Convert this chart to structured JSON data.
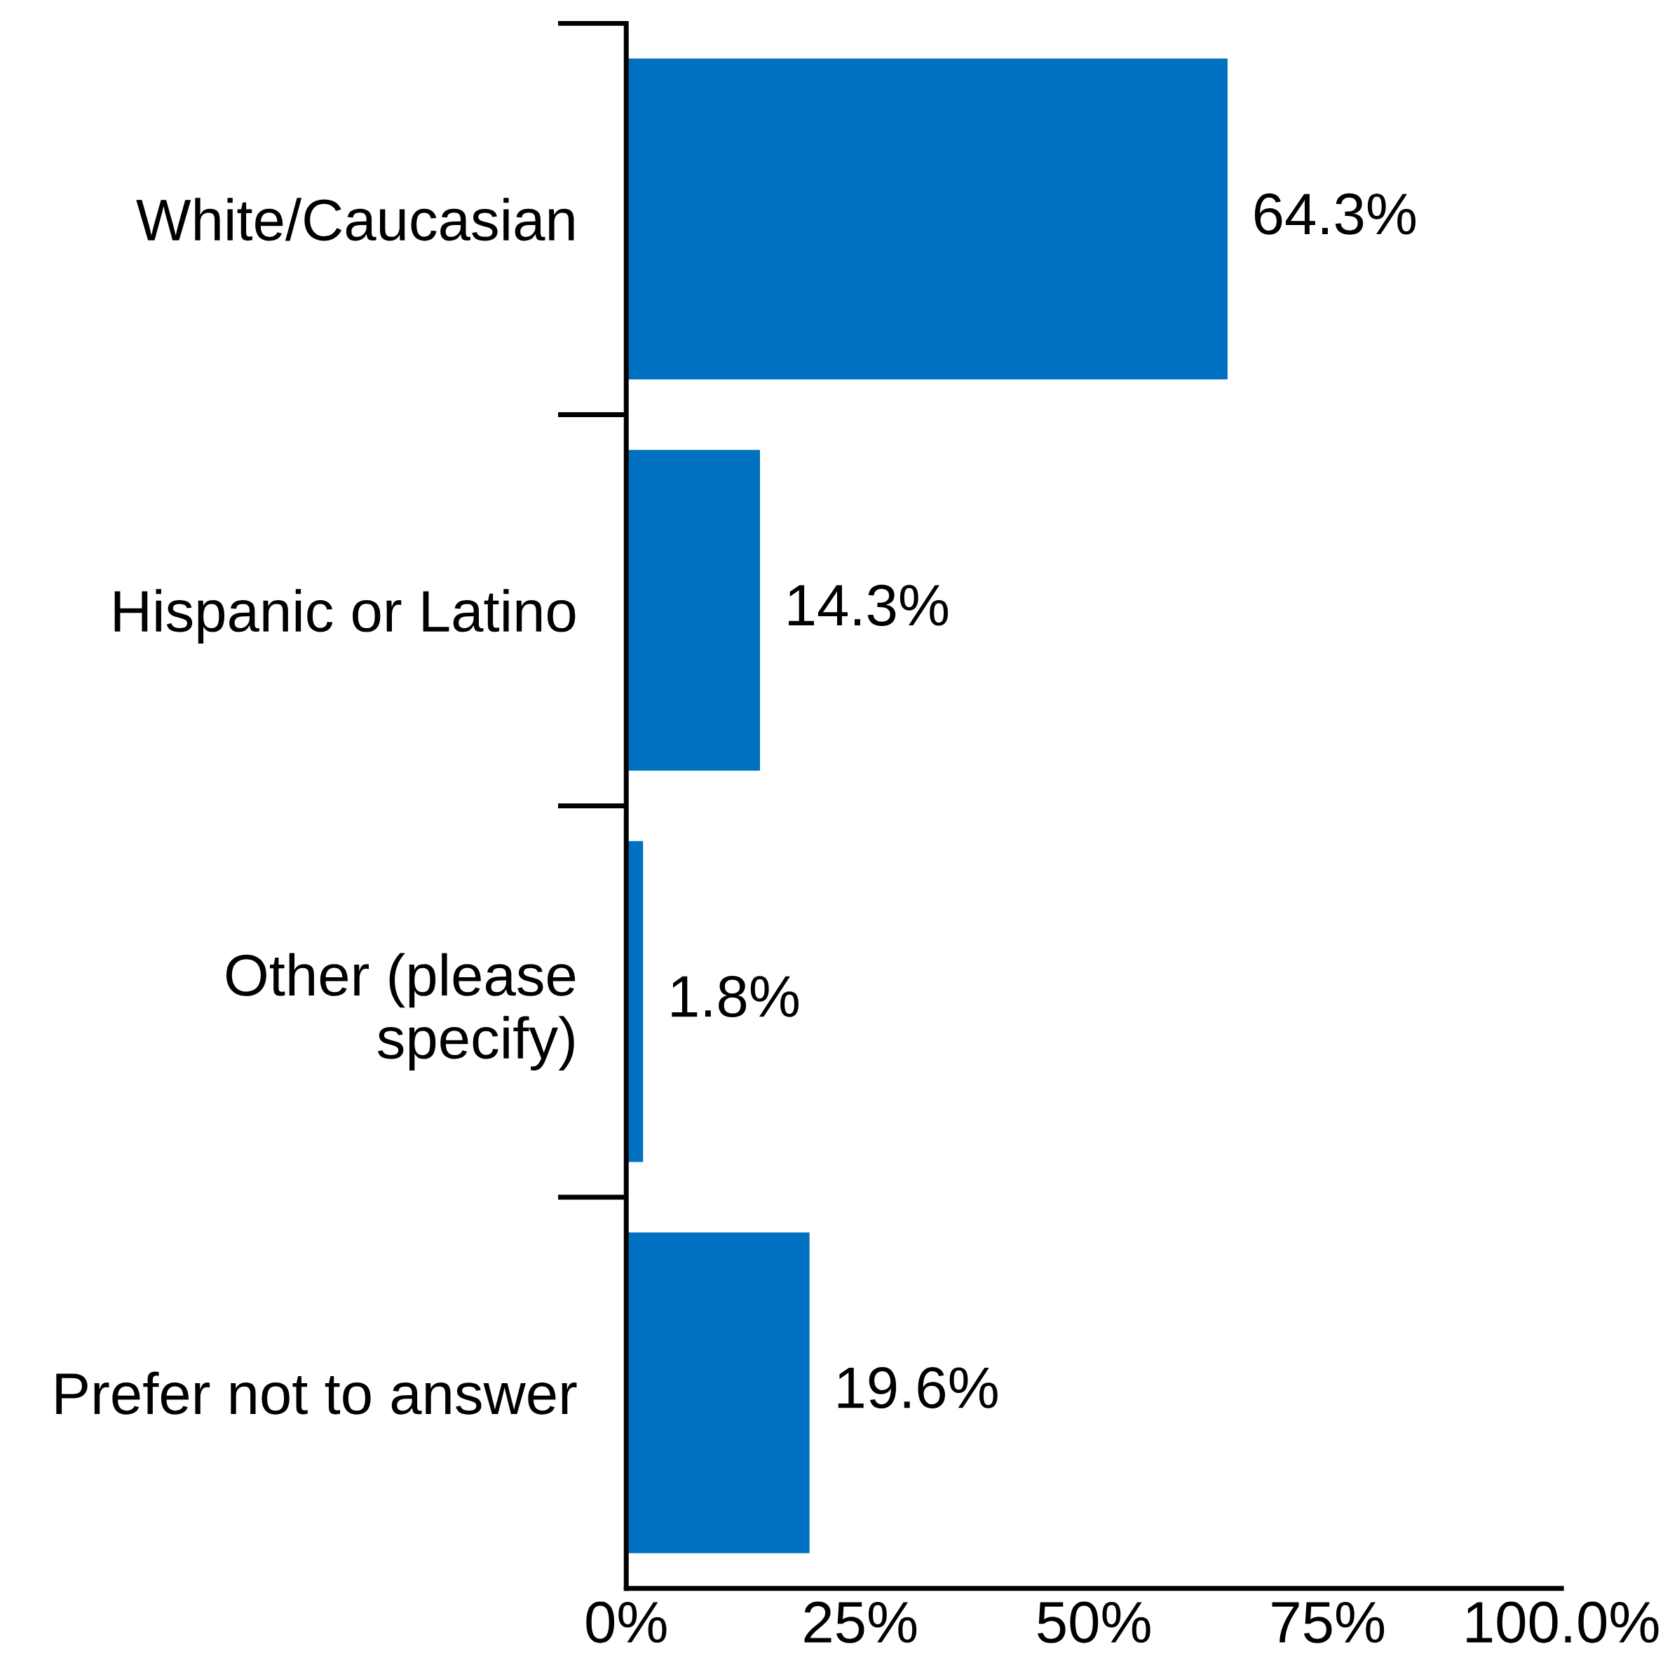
{
  "chart_data": {
    "type": "bar",
    "orientation": "horizontal",
    "categories": [
      "White/Caucasian",
      "Hispanic or Latino",
      "Other (please\nspecify)",
      "Prefer not to answer"
    ],
    "values": [
      64.3,
      14.3,
      1.8,
      19.6
    ],
    "value_labels": [
      "64.3%",
      "14.3%",
      "1.8%",
      "19.6%"
    ],
    "color": "#0070c0",
    "xlim": [
      0,
      100
    ],
    "xticks": [
      {
        "value": 0,
        "label": "0%"
      },
      {
        "value": 25,
        "label": "25%"
      },
      {
        "value": 50,
        "label": "50%"
      },
      {
        "value": 75,
        "label": "75%"
      },
      {
        "value": 100,
        "label": "100.0%"
      }
    ],
    "grid": false,
    "legend": false
  }
}
